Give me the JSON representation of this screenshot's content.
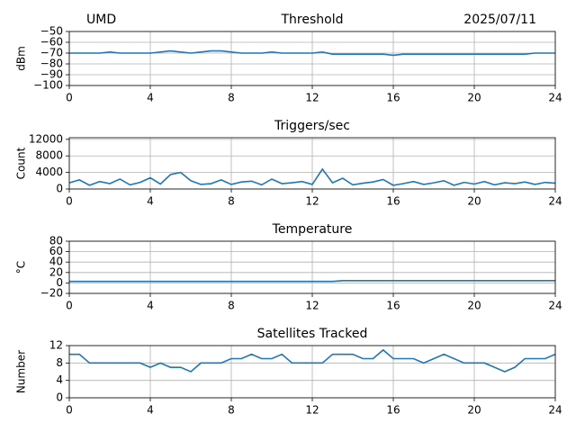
{
  "chart_data": [
    {
      "type": "line",
      "title": "Threshold",
      "annotations": {
        "left": "UMD",
        "right": "2025/07/11"
      },
      "y_label": "dBm",
      "grid": true,
      "x": [
        0,
        0.5,
        1,
        1.5,
        2,
        2.5,
        3,
        3.5,
        4,
        4.5,
        5,
        5.5,
        6,
        6.5,
        7,
        7.5,
        8,
        8.5,
        9,
        9.5,
        10,
        10.5,
        11,
        11.5,
        12,
        12.5,
        13,
        13.5,
        14,
        14.5,
        15,
        15.5,
        16,
        16.5,
        17,
        17.5,
        18,
        18.5,
        19,
        19.5,
        20,
        20.5,
        21,
        21.5,
        22,
        22.5,
        23,
        23.5,
        24
      ],
      "series": [
        {
          "color": "#1f77b4",
          "values": [
            -70,
            -70,
            -70,
            -70,
            -69,
            -70,
            -70,
            -70,
            -70,
            -69,
            -68,
            -69,
            -70,
            -69,
            -68,
            -68,
            -69,
            -70,
            -70,
            -70,
            -69,
            -70,
            -70,
            -70,
            -70,
            -69,
            -71,
            -71,
            -71,
            -71,
            -71,
            -71,
            -72,
            -71,
            -71,
            -71,
            -71,
            -71,
            -71,
            -71,
            -71,
            -71,
            -71,
            -71,
            -71,
            -71,
            -70,
            -70,
            -70
          ]
        }
      ],
      "xlim": [
        0,
        24
      ],
      "xticks": [
        0,
        4,
        8,
        12,
        16,
        20,
        24
      ],
      "ylim": [
        -100,
        -50
      ],
      "yticks": [
        {
          "value": -100,
          "label": "−100"
        },
        {
          "value": -90,
          "label": "−90"
        },
        {
          "value": -80,
          "label": "−80"
        },
        {
          "value": -70,
          "label": "−70"
        },
        {
          "value": -60,
          "label": "−60"
        },
        {
          "value": -50,
          "label": "−50"
        }
      ]
    },
    {
      "type": "line",
      "title": "Triggers/sec",
      "y_label": "Count",
      "grid": true,
      "x": [
        0,
        0.5,
        1,
        1.5,
        2,
        2.5,
        3,
        3.5,
        4,
        4.5,
        5,
        5.5,
        6,
        6.5,
        7,
        7.5,
        8,
        8.5,
        9,
        9.5,
        10,
        10.5,
        11,
        11.5,
        12,
        12.5,
        13,
        13.5,
        14,
        14.5,
        15,
        15.5,
        16,
        16.5,
        17,
        17.5,
        18,
        18.5,
        19,
        19.5,
        20,
        20.5,
        21,
        21.5,
        22,
        22.5,
        23,
        23.5,
        24
      ],
      "series": [
        {
          "color": "#1f77b4",
          "values": [
            1500,
            2200,
            900,
            1800,
            1300,
            2400,
            1000,
            1600,
            2700,
            1200,
            3500,
            4000,
            2000,
            1100,
            1300,
            2200,
            1100,
            1700,
            1900,
            1000,
            2400,
            1300,
            1500,
            1800,
            1100,
            4800,
            1500,
            2600,
            1000,
            1400,
            1700,
            2300,
            900,
            1300,
            1800,
            1100,
            1500,
            2000,
            900,
            1600,
            1200,
            1800,
            1000,
            1500,
            1300,
            1700,
            1100,
            1600,
            1400
          ]
        }
      ],
      "xlim": [
        0,
        24
      ],
      "xticks": [
        0,
        4,
        8,
        12,
        16,
        20,
        24
      ],
      "ylim": [
        0,
        12400
      ],
      "yticks": [
        0,
        4000,
        8000,
        12000
      ]
    },
    {
      "type": "line",
      "title": "Temperature",
      "y_label": "°C",
      "grid": true,
      "x": [
        0,
        0.5,
        1,
        1.5,
        2,
        2.5,
        3,
        3.5,
        4,
        4.5,
        5,
        5.5,
        6,
        6.5,
        7,
        7.5,
        8,
        8.5,
        9,
        9.5,
        10,
        10.5,
        11,
        11.5,
        12,
        12.5,
        13,
        13.5,
        14,
        14.5,
        15,
        15.5,
        16,
        16.5,
        17,
        17.5,
        18,
        18.5,
        19,
        19.5,
        20,
        20.5,
        21,
        21.5,
        22,
        22.5,
        23,
        23.5,
        24
      ],
      "series": [
        {
          "color": "#1f77b4",
          "values": [
            3,
            3,
            3,
            3,
            3,
            3,
            3,
            3,
            3,
            3,
            3,
            3,
            3,
            3,
            3,
            3,
            3,
            3,
            3,
            3,
            3,
            3,
            3,
            3,
            3,
            3,
            3,
            4.5,
            4.5,
            4.5,
            4.5,
            4.5,
            4.5,
            4.5,
            4.5,
            4.5,
            4.5,
            4.5,
            4.5,
            4.5,
            4.5,
            4.5,
            4.5,
            4.5,
            4.5,
            4.5,
            4.5,
            4.5,
            4.5
          ]
        }
      ],
      "xlim": [
        0,
        24
      ],
      "xticks": [
        0,
        4,
        8,
        12,
        16,
        20,
        24
      ],
      "ylim": [
        -20,
        80
      ],
      "yticks": [
        {
          "value": -20,
          "label": "−20"
        },
        0,
        20,
        40,
        60,
        80
      ]
    },
    {
      "type": "line",
      "title": "Satellites Tracked",
      "y_label": "Number",
      "grid": true,
      "x": [
        0,
        0.5,
        1,
        1.5,
        2,
        2.5,
        3,
        3.5,
        4,
        4.5,
        5,
        5.5,
        6,
        6.5,
        7,
        7.5,
        8,
        8.5,
        9,
        9.5,
        10,
        10.5,
        11,
        11.5,
        12,
        12.5,
        13,
        13.5,
        14,
        14.5,
        15,
        15.5,
        16,
        16.5,
        17,
        17.5,
        18,
        18.5,
        19,
        19.5,
        20,
        20.5,
        21,
        21.5,
        22,
        22.5,
        23,
        23.5,
        24
      ],
      "series": [
        {
          "color": "#1f77b4",
          "values": [
            10,
            10,
            8,
            8,
            8,
            8,
            8,
            8,
            7,
            8,
            7,
            7,
            6,
            8,
            8,
            8,
            9,
            9,
            10,
            9,
            9,
            10,
            8,
            8,
            8,
            8,
            10,
            10,
            10,
            9,
            9,
            11,
            9,
            9,
            9,
            8,
            9,
            10,
            9,
            8,
            8,
            8,
            7,
            6,
            7,
            9,
            9,
            9,
            10
          ]
        }
      ],
      "xlim": [
        0,
        24
      ],
      "xticks": [
        0,
        4,
        8,
        12,
        16,
        20,
        24
      ],
      "ylim": [
        0,
        12
      ],
      "yticks": [
        0,
        4,
        8,
        12
      ]
    }
  ]
}
